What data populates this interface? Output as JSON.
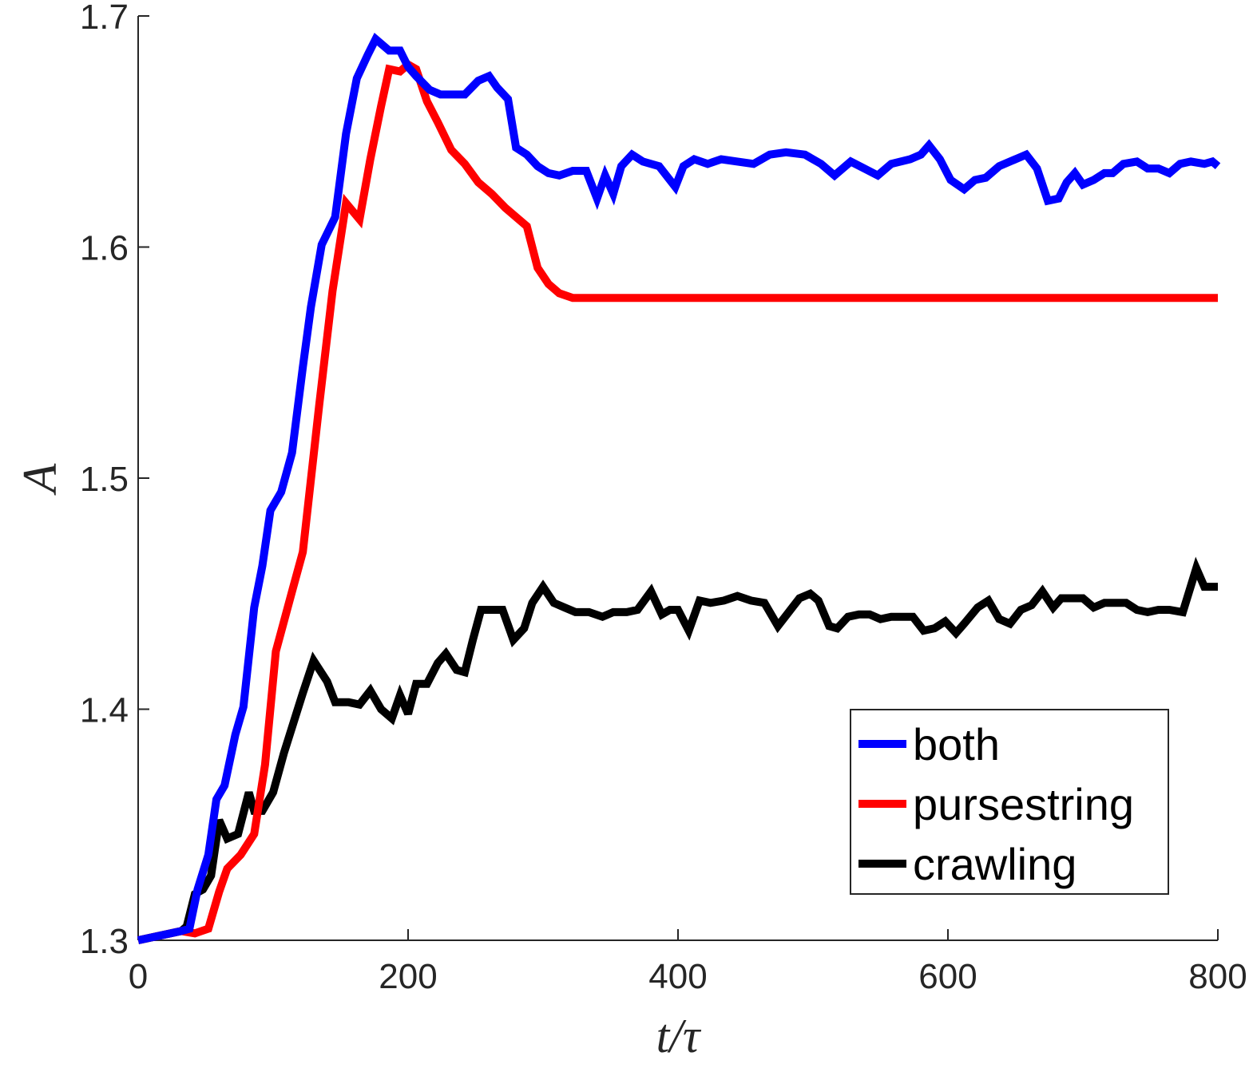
{
  "chart_data": {
    "type": "line",
    "xlabel": "t/τ",
    "ylabel": "A",
    "xlim": [
      0,
      800
    ],
    "ylim": [
      1.3,
      1.7
    ],
    "xticks": [
      0,
      200,
      400,
      600,
      800
    ],
    "xtick_labels": [
      "0",
      "200",
      "400",
      "600",
      "800"
    ],
    "yticks": [
      1.3,
      1.4,
      1.5,
      1.6,
      1.7
    ],
    "ytick_labels": [
      "1.3",
      "1.4",
      "1.5",
      "1.6",
      "1.7"
    ],
    "grid": false,
    "legend_position": "bottom-right",
    "series": [
      {
        "name": "both",
        "color": "#0000ff",
        "x": [
          0,
          32,
          38,
          44,
          52,
          58,
          64,
          72,
          78,
          86,
          92,
          98,
          106,
          114,
          122,
          128,
          136,
          146,
          154,
          162,
          170,
          176,
          186,
          194,
          200,
          206,
          216,
          224,
          232,
          242,
          252,
          260,
          266,
          274,
          280,
          288,
          296,
          304,
          312,
          322,
          332,
          340,
          346,
          352,
          358,
          366,
          374,
          386,
          398,
          404,
          412,
          422,
          432,
          444,
          456,
          468,
          480,
          494,
          506,
          516,
          528,
          538,
          548,
          558,
          572,
          580,
          586,
          594,
          602,
          612,
          620,
          628,
          638,
          650,
          658,
          666,
          674,
          682,
          688,
          694,
          700,
          708,
          716,
          722,
          730,
          740,
          748,
          756,
          764,
          772,
          780,
          790,
          796,
          800
        ],
        "values": [
          1.3,
          1.304,
          1.305,
          1.322,
          1.337,
          1.361,
          1.367,
          1.389,
          1.401,
          1.444,
          1.462,
          1.486,
          1.494,
          1.511,
          1.548,
          1.574,
          1.601,
          1.613,
          1.649,
          1.673,
          1.683,
          1.69,
          1.685,
          1.685,
          1.678,
          1.674,
          1.668,
          1.666,
          1.666,
          1.666,
          1.672,
          1.674,
          1.669,
          1.664,
          1.643,
          1.64,
          1.635,
          1.632,
          1.631,
          1.633,
          1.633,
          1.621,
          1.631,
          1.623,
          1.635,
          1.64,
          1.637,
          1.635,
          1.626,
          1.635,
          1.638,
          1.636,
          1.638,
          1.637,
          1.636,
          1.64,
          1.641,
          1.64,
          1.636,
          1.631,
          1.637,
          1.634,
          1.631,
          1.636,
          1.638,
          1.64,
          1.644,
          1.638,
          1.629,
          1.625,
          1.629,
          1.63,
          1.635,
          1.638,
          1.64,
          1.634,
          1.62,
          1.621,
          1.628,
          1.632,
          1.627,
          1.629,
          1.632,
          1.632,
          1.636,
          1.637,
          1.634,
          1.634,
          1.632,
          1.636,
          1.637,
          1.636,
          1.637,
          1.635
        ]
      },
      {
        "name": "pursestring",
        "color": "#ff0000",
        "x": [
          0,
          32,
          42,
          52,
          60,
          66,
          76,
          86,
          94,
          102,
          114,
          122,
          134,
          144,
          154,
          164,
          172,
          180,
          186,
          194,
          200,
          206,
          214,
          222,
          232,
          242,
          252,
          262,
          272,
          282,
          288,
          296,
          304,
          312,
          322,
          340,
          380,
          440,
          520,
          600,
          700,
          800
        ],
        "values": [
          1.3,
          1.304,
          1.303,
          1.305,
          1.321,
          1.331,
          1.337,
          1.346,
          1.376,
          1.425,
          1.451,
          1.468,
          1.531,
          1.581,
          1.619,
          1.612,
          1.638,
          1.661,
          1.677,
          1.676,
          1.679,
          1.677,
          1.663,
          1.654,
          1.642,
          1.636,
          1.628,
          1.623,
          1.617,
          1.612,
          1.609,
          1.591,
          1.584,
          1.58,
          1.578,
          1.578,
          1.578,
          1.578,
          1.578,
          1.578,
          1.578,
          1.578
        ]
      },
      {
        "name": "crawling",
        "color": "#000000",
        "x": [
          0,
          32,
          36,
          42,
          48,
          54,
          60,
          66,
          74,
          82,
          86,
          92,
          100,
          108,
          122,
          130,
          140,
          146,
          156,
          164,
          172,
          180,
          188,
          194,
          200,
          206,
          214,
          222,
          228,
          236,
          242,
          248,
          254,
          262,
          270,
          278,
          286,
          292,
          300,
          308,
          316,
          324,
          334,
          344,
          352,
          362,
          370,
          380,
          388,
          394,
          400,
          408,
          416,
          424,
          434,
          444,
          454,
          464,
          474,
          482,
          490,
          498,
          504,
          512,
          518,
          526,
          534,
          542,
          550,
          558,
          566,
          574,
          582,
          590,
          598,
          606,
          612,
          622,
          630,
          638,
          646,
          654,
          662,
          670,
          678,
          684,
          692,
          700,
          708,
          716,
          724,
          732,
          740,
          748,
          756,
          764,
          774,
          784,
          790,
          796,
          800
        ],
        "values": [
          1.3,
          1.304,
          1.306,
          1.32,
          1.322,
          1.328,
          1.352,
          1.344,
          1.346,
          1.364,
          1.356,
          1.356,
          1.364,
          1.381,
          1.407,
          1.421,
          1.412,
          1.403,
          1.403,
          1.402,
          1.408,
          1.4,
          1.396,
          1.406,
          1.398,
          1.411,
          1.411,
          1.42,
          1.424,
          1.417,
          1.416,
          1.43,
          1.443,
          1.443,
          1.443,
          1.43,
          1.435,
          1.446,
          1.453,
          1.446,
          1.444,
          1.442,
          1.442,
          1.44,
          1.442,
          1.442,
          1.443,
          1.451,
          1.441,
          1.443,
          1.443,
          1.434,
          1.447,
          1.446,
          1.447,
          1.449,
          1.447,
          1.446,
          1.436,
          1.442,
          1.448,
          1.45,
          1.447,
          1.436,
          1.435,
          1.44,
          1.441,
          1.441,
          1.439,
          1.44,
          1.44,
          1.44,
          1.434,
          1.435,
          1.438,
          1.433,
          1.437,
          1.444,
          1.447,
          1.439,
          1.437,
          1.443,
          1.445,
          1.451,
          1.444,
          1.448,
          1.448,
          1.448,
          1.444,
          1.446,
          1.446,
          1.446,
          1.443,
          1.442,
          1.443,
          1.443,
          1.442,
          1.461,
          1.453,
          1.453,
          1.453
        ]
      }
    ]
  }
}
